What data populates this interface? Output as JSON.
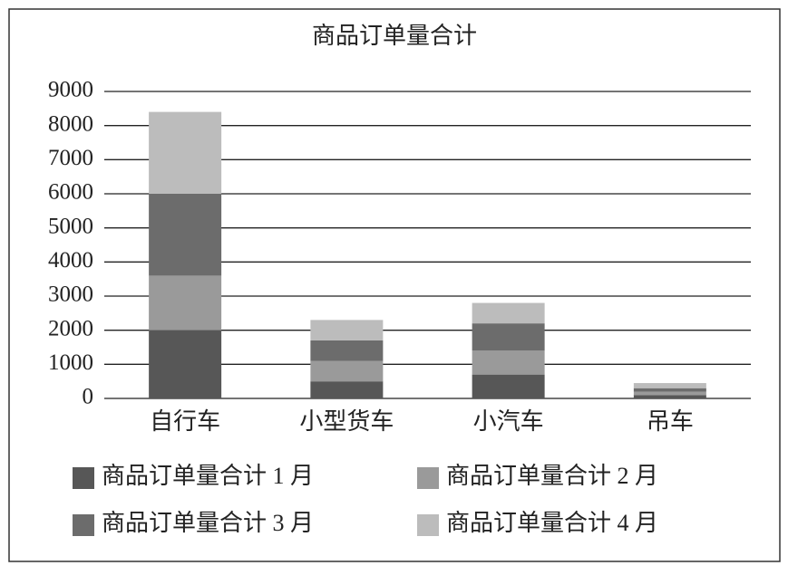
{
  "chart_data": {
    "type": "stacked_bar",
    "title": "商品订单量合计",
    "categories": [
      "自行车",
      "小型货车",
      "小汽车",
      "吊车"
    ],
    "series": [
      {
        "name": "商品订单量合计 1 月",
        "color": "#575757",
        "values": [
          2000,
          500,
          700,
          100
        ]
      },
      {
        "name": "商品订单量合计 2 月",
        "color": "#9a9a9a",
        "values": [
          1600,
          600,
          700,
          100
        ]
      },
      {
        "name": "商品订单量合计 3 月",
        "color": "#6c6c6c",
        "values": [
          2400,
          600,
          800,
          100
        ]
      },
      {
        "name": "商品订单量合计 4 月",
        "color": "#bcbcbc",
        "values": [
          2400,
          600,
          600,
          150
        ]
      }
    ],
    "ylim": [
      0,
      9000
    ],
    "yticks": [
      0,
      1000,
      2000,
      3000,
      4000,
      5000,
      6000,
      7000,
      8000,
      9000
    ],
    "grid": true
  }
}
